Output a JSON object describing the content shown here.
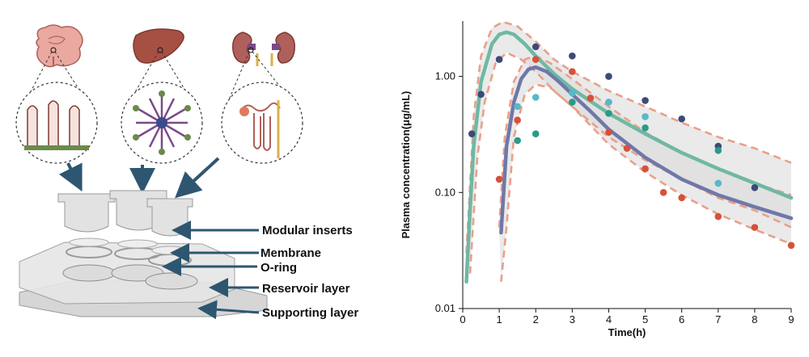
{
  "diagram": {
    "labels": {
      "modular_inserts": "Modular inserts",
      "membrane": "Membrane",
      "o_ring": "O-ring",
      "reservoir_layer": "Reservoir layer",
      "supporting_layer": "Supporting layer"
    },
    "organs": [
      "intestine-icon",
      "liver-icon",
      "kidney-icon"
    ],
    "colors": {
      "arrow": "#2e5670",
      "organ": "#b0605a",
      "device": "#c8c8c8"
    }
  },
  "chart_data": {
    "type": "scatter",
    "xlabel": "Time(h)",
    "ylabel": "Plasma concentration(μg/mL)",
    "xlim": [
      0,
      9
    ],
    "ylim": [
      0.01,
      3
    ],
    "yscale": "log",
    "xticks": [
      "0",
      "1",
      "2",
      "3",
      "4",
      "5",
      "6",
      "7",
      "8",
      "9"
    ],
    "yticks": [
      "0.01",
      "0.10",
      "1.00"
    ],
    "ytick_values": [
      0.01,
      0.1,
      1.0
    ],
    "grid": false,
    "band_colors": {
      "fill": "#d9d9d9",
      "ci": "#e8a08a"
    },
    "series": [
      {
        "color": "#3b4a78",
        "points": [
          [
            0.25,
            0.32
          ],
          [
            0.5,
            0.7
          ],
          [
            1.0,
            1.4
          ],
          [
            2.0,
            1.8
          ],
          [
            3.0,
            1.5
          ],
          [
            4.0,
            1.0
          ],
          [
            5.0,
            0.62
          ],
          [
            6.0,
            0.43
          ],
          [
            7.0,
            0.25
          ],
          [
            8.0,
            0.11
          ]
        ]
      },
      {
        "color": "#57b8c9",
        "points": [
          [
            1.5,
            0.55
          ],
          [
            2.0,
            0.66
          ],
          [
            3.0,
            0.72
          ],
          [
            4.0,
            0.6
          ],
          [
            5.0,
            0.45
          ],
          [
            7.0,
            0.12
          ]
        ]
      },
      {
        "color": "#2a9a8a",
        "points": [
          [
            1.5,
            0.28
          ],
          [
            2.0,
            0.32
          ],
          [
            3.0,
            0.6
          ],
          [
            4.0,
            0.48
          ],
          [
            5.0,
            0.36
          ],
          [
            7.0,
            0.23
          ]
        ]
      },
      {
        "color": "#d6513a",
        "points": [
          [
            1.0,
            0.13
          ],
          [
            1.5,
            0.42
          ],
          [
            2.0,
            1.4
          ],
          [
            3.0,
            1.1
          ],
          [
            3.5,
            0.65
          ],
          [
            4.0,
            0.33
          ],
          [
            4.5,
            0.24
          ],
          [
            5.0,
            0.16
          ],
          [
            5.5,
            0.1
          ],
          [
            6.0,
            0.09
          ],
          [
            7.0,
            0.062
          ],
          [
            8.0,
            0.05
          ],
          [
            9.0,
            0.035
          ]
        ]
      }
    ],
    "fit_curves": [
      {
        "color": "#6fb8a4",
        "points": [
          [
            0.1,
            0.017
          ],
          [
            0.2,
            0.07
          ],
          [
            0.3,
            0.25
          ],
          [
            0.5,
            0.9
          ],
          [
            0.8,
            1.9
          ],
          [
            1.0,
            2.3
          ],
          [
            1.2,
            2.4
          ],
          [
            1.4,
            2.3
          ],
          [
            1.7,
            1.9
          ],
          [
            2.0,
            1.5
          ],
          [
            2.5,
            1.05
          ],
          [
            3.0,
            0.78
          ],
          [
            4.0,
            0.48
          ],
          [
            5.0,
            0.32
          ],
          [
            6.0,
            0.22
          ],
          [
            7.0,
            0.16
          ],
          [
            8.0,
            0.12
          ],
          [
            9.0,
            0.09
          ]
        ],
        "upper": [
          [
            0.1,
            0.03
          ],
          [
            0.3,
            0.45
          ],
          [
            0.5,
            1.5
          ],
          [
            0.8,
            2.6
          ],
          [
            1.1,
            2.95
          ],
          [
            1.5,
            2.7
          ],
          [
            2.0,
            2.0
          ],
          [
            2.5,
            1.4
          ],
          [
            3.0,
            1.1
          ],
          [
            4.0,
            0.75
          ],
          [
            5.0,
            0.55
          ],
          [
            6.0,
            0.4
          ],
          [
            7.0,
            0.3
          ],
          [
            8.0,
            0.24
          ],
          [
            9.0,
            0.18
          ]
        ],
        "lower": [
          [
            0.2,
            0.02
          ],
          [
            0.4,
            0.2
          ],
          [
            0.6,
            0.6
          ],
          [
            0.9,
            1.3
          ],
          [
            1.2,
            1.6
          ],
          [
            1.6,
            1.4
          ],
          [
            2.0,
            1.1
          ],
          [
            2.5,
            0.75
          ],
          [
            3.0,
            0.55
          ],
          [
            4.0,
            0.3
          ],
          [
            5.0,
            0.19
          ],
          [
            6.0,
            0.13
          ],
          [
            7.0,
            0.09
          ],
          [
            8.0,
            0.07
          ],
          [
            9.0,
            0.05
          ]
        ]
      },
      {
        "color": "#6f78a8",
        "points": [
          [
            1.05,
            0.045
          ],
          [
            1.2,
            0.25
          ],
          [
            1.4,
            0.6
          ],
          [
            1.6,
            0.95
          ],
          [
            1.8,
            1.15
          ],
          [
            2.0,
            1.2
          ],
          [
            2.3,
            1.1
          ],
          [
            2.6,
            0.92
          ],
          [
            3.0,
            0.7
          ],
          [
            3.5,
            0.5
          ],
          [
            4.0,
            0.35
          ],
          [
            5.0,
            0.2
          ],
          [
            6.0,
            0.13
          ],
          [
            7.0,
            0.095
          ],
          [
            8.0,
            0.075
          ],
          [
            9.0,
            0.06
          ]
        ],
        "upper": [
          [
            1.0,
            0.05
          ],
          [
            1.15,
            0.3
          ],
          [
            1.4,
            0.9
          ],
          [
            1.7,
            1.4
          ],
          [
            2.0,
            1.5
          ],
          [
            2.4,
            1.3
          ],
          [
            3.0,
            0.95
          ],
          [
            4.0,
            0.55
          ],
          [
            5.0,
            0.33
          ],
          [
            6.0,
            0.22
          ],
          [
            7.0,
            0.16
          ],
          [
            8.0,
            0.12
          ],
          [
            9.0,
            0.095
          ]
        ],
        "lower": [
          [
            1.05,
            0.017
          ],
          [
            1.2,
            0.05
          ],
          [
            1.4,
            0.3
          ],
          [
            1.7,
            0.7
          ],
          [
            2.0,
            0.85
          ],
          [
            2.4,
            0.8
          ],
          [
            3.0,
            0.55
          ],
          [
            4.0,
            0.26
          ],
          [
            5.0,
            0.15
          ],
          [
            6.0,
            0.095
          ],
          [
            7.0,
            0.065
          ],
          [
            8.0,
            0.048
          ],
          [
            9.0,
            0.036
          ]
        ]
      }
    ]
  }
}
